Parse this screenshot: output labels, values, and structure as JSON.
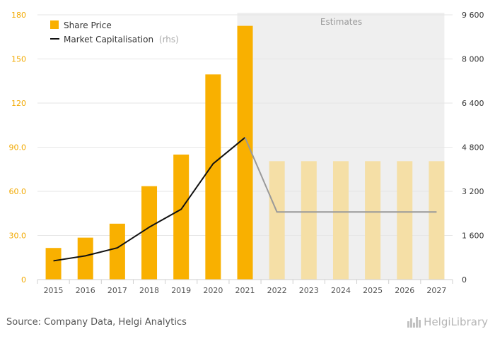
{
  "chart_data": {
    "type": "bar",
    "categories": [
      "2015",
      "2016",
      "2017",
      "2018",
      "2019",
      "2020",
      "2021",
      "2022",
      "2023",
      "2024",
      "2025",
      "2026",
      "2027"
    ],
    "series": [
      {
        "name": "Share Price",
        "type": "bar",
        "axis": "left",
        "color": "#f9b000",
        "estimate_color": "#f5dfa6",
        "values": [
          21.5,
          28.5,
          38,
          63.5,
          85,
          139.5,
          172.5,
          80.5,
          80.5,
          80.5,
          80.5,
          80.5,
          80.5
        ]
      },
      {
        "name": "Market Capitalisation",
        "suffix": "(rhs)",
        "type": "line",
        "axis": "right",
        "color": "#111111",
        "estimate_color": "#999999",
        "values": [
          680,
          860,
          1150,
          1900,
          2550,
          4200,
          5150,
          null,
          null,
          null,
          null,
          null,
          null
        ],
        "estimate_values": [
          null,
          null,
          null,
          null,
          null,
          null,
          5150,
          2450,
          2450,
          2450,
          2450,
          2450,
          2450
        ]
      }
    ],
    "estimates_from": "2022",
    "estimates_label": "Estimates",
    "y_left": {
      "ylim": [
        0,
        180
      ],
      "ticks": [
        0,
        30,
        60,
        90,
        120,
        150,
        180
      ],
      "tick_labels": [
        "0",
        "30.0",
        "60.0",
        "90.0",
        "120",
        "150",
        "180"
      ]
    },
    "y_right": {
      "ylim": [
        0,
        9600
      ],
      "ticks": [
        0,
        1600,
        3200,
        4800,
        6400,
        8000,
        9600
      ],
      "tick_labels": [
        "0",
        "1 600",
        "3 200",
        "4 800",
        "6 400",
        "8 000",
        "9 600"
      ]
    },
    "grid": true,
    "legend_position": "top-left"
  },
  "footer": {
    "source": "Source: Company Data, Helgi Analytics",
    "logo_text": "HelgiLibrary"
  }
}
